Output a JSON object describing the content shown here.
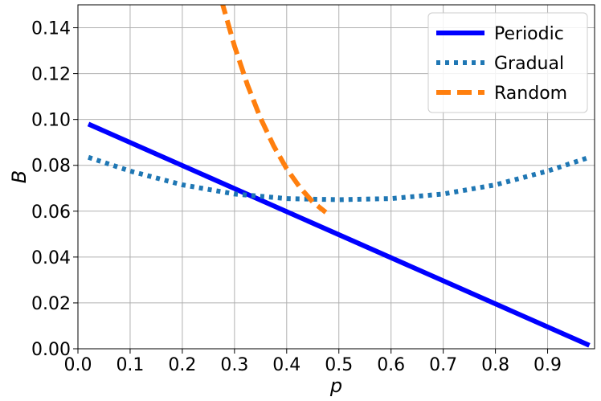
{
  "chart_data": {
    "type": "line",
    "xlabel": "p",
    "ylabel": "B",
    "xlim": [
      0.0,
      0.99
    ],
    "ylim": [
      0.0,
      0.15
    ],
    "xticks": [
      "0.0",
      "0.1",
      "0.2",
      "0.3",
      "0.4",
      "0.5",
      "0.6",
      "0.7",
      "0.8",
      "0.9"
    ],
    "yticks": [
      "0.00",
      "0.02",
      "0.04",
      "0.06",
      "0.08",
      "0.10",
      "0.12",
      "0.14"
    ],
    "grid": true,
    "legend_position": "top-right",
    "series": [
      {
        "name": "Periodic",
        "color": "#0000ff",
        "style": "solid",
        "x": [
          0.02,
          0.98
        ],
        "y": [
          0.098,
          0.0015
        ]
      },
      {
        "name": "Gradual",
        "color": "#1f77b4",
        "style": "dotted",
        "x": [
          0.02,
          0.1,
          0.2,
          0.3,
          0.4,
          0.5,
          0.6,
          0.7,
          0.8,
          0.9,
          0.98
        ],
        "y": [
          0.0835,
          0.0775,
          0.0715,
          0.0675,
          0.0655,
          0.065,
          0.0655,
          0.0675,
          0.0715,
          0.0775,
          0.0835
        ]
      },
      {
        "name": "Random",
        "color": "#ff7f0e",
        "style": "dashed",
        "x": [
          0.275,
          0.3,
          0.325,
          0.35,
          0.375,
          0.4,
          0.425,
          0.45,
          0.475
        ],
        "y": [
          0.152,
          0.132,
          0.115,
          0.1005,
          0.0885,
          0.0785,
          0.0705,
          0.064,
          0.0595
        ]
      }
    ]
  }
}
